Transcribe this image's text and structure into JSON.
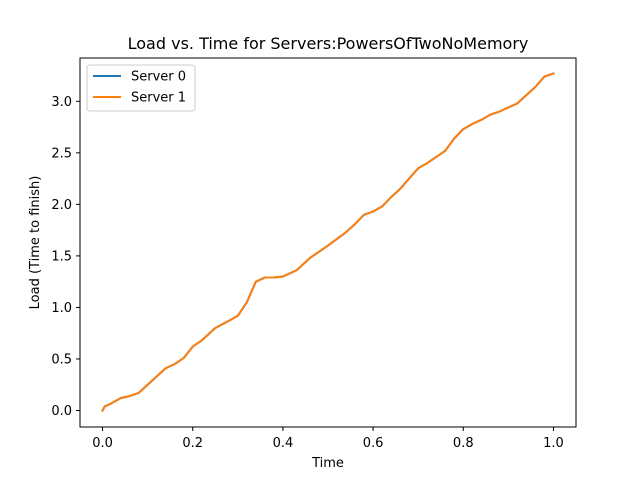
{
  "chart_data": {
    "type": "line",
    "title": "Load vs. Time for Servers:PowersOfTwoNoMemory",
    "xlabel": "Time",
    "ylabel": "Load (Time to finish)",
    "xlim": [
      -0.05,
      1.05
    ],
    "ylim": [
      -0.16,
      3.42
    ],
    "xticks": [
      0.0,
      0.2,
      0.4,
      0.6,
      0.8,
      1.0
    ],
    "xtick_labels": [
      "0.0",
      "0.2",
      "0.4",
      "0.6",
      "0.8",
      "1.0"
    ],
    "yticks": [
      0.0,
      0.5,
      1.0,
      1.5,
      2.0,
      2.5,
      3.0
    ],
    "ytick_labels": [
      "0.0",
      "0.5",
      "1.0",
      "1.5",
      "2.0",
      "2.5",
      "3.0"
    ],
    "grid": false,
    "legend_position": "upper-left",
    "series": [
      {
        "name": "Server 0",
        "color": "#1f77b4",
        "x": [
          0.0,
          0.005,
          0.02,
          0.04,
          0.06,
          0.08,
          0.1,
          0.12,
          0.14,
          0.16,
          0.18,
          0.2,
          0.22,
          0.25,
          0.28,
          0.3,
          0.32,
          0.34,
          0.36,
          0.38,
          0.4,
          0.43,
          0.46,
          0.5,
          0.54,
          0.56,
          0.58,
          0.6,
          0.62,
          0.64,
          0.66,
          0.68,
          0.7,
          0.72,
          0.74,
          0.76,
          0.78,
          0.8,
          0.82,
          0.84,
          0.86,
          0.88,
          0.9,
          0.92,
          0.94,
          0.96,
          0.98,
          1.0
        ],
        "y": [
          0.0,
          0.04,
          0.07,
          0.12,
          0.14,
          0.17,
          0.25,
          0.33,
          0.41,
          0.45,
          0.51,
          0.62,
          0.68,
          0.8,
          0.87,
          0.92,
          1.05,
          1.25,
          1.29,
          1.29,
          1.3,
          1.36,
          1.48,
          1.6,
          1.73,
          1.81,
          1.9,
          1.93,
          1.98,
          2.07,
          2.15,
          2.25,
          2.35,
          2.4,
          2.46,
          2.52,
          2.64,
          2.73,
          2.78,
          2.82,
          2.87,
          2.9,
          2.94,
          2.98,
          3.06,
          3.14,
          3.24,
          3.27
        ]
      },
      {
        "name": "Server 1",
        "color": "#ff7f0e",
        "x": [
          0.0,
          0.005,
          0.02,
          0.04,
          0.06,
          0.08,
          0.1,
          0.12,
          0.14,
          0.16,
          0.18,
          0.2,
          0.22,
          0.25,
          0.28,
          0.3,
          0.32,
          0.34,
          0.36,
          0.38,
          0.4,
          0.43,
          0.46,
          0.5,
          0.54,
          0.56,
          0.58,
          0.6,
          0.62,
          0.64,
          0.66,
          0.68,
          0.7,
          0.72,
          0.74,
          0.76,
          0.78,
          0.8,
          0.82,
          0.84,
          0.86,
          0.88,
          0.9,
          0.92,
          0.94,
          0.96,
          0.98,
          1.0
        ],
        "y": [
          0.0,
          0.04,
          0.07,
          0.12,
          0.14,
          0.17,
          0.25,
          0.33,
          0.41,
          0.45,
          0.51,
          0.62,
          0.68,
          0.8,
          0.87,
          0.92,
          1.05,
          1.25,
          1.29,
          1.29,
          1.3,
          1.36,
          1.48,
          1.6,
          1.73,
          1.81,
          1.9,
          1.93,
          1.98,
          2.07,
          2.15,
          2.25,
          2.35,
          2.4,
          2.46,
          2.52,
          2.64,
          2.73,
          2.78,
          2.82,
          2.87,
          2.9,
          2.94,
          2.98,
          3.06,
          3.14,
          3.24,
          3.27
        ]
      }
    ]
  }
}
